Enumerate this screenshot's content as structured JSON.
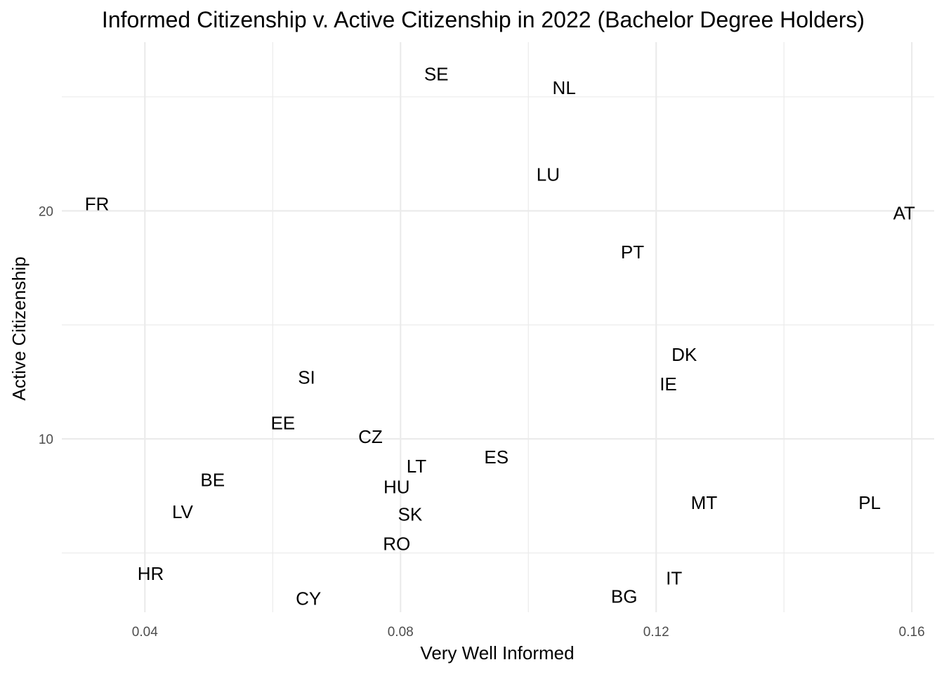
{
  "chart_data": {
    "type": "scatter",
    "title": "Informed Citizenship v. Active Citizenship in 2022 (Bachelor Degree Holders)",
    "xlabel": "Very Well Informed",
    "ylabel": "Active Citizenship",
    "xlim": [
      0.027,
      0.1635
    ],
    "ylim": [
      2.4,
      27.4
    ],
    "x_ticks": [
      0.04,
      0.08,
      0.12,
      0.16
    ],
    "x_tick_labels": [
      "0.04",
      "0.08",
      "0.12",
      "0.16"
    ],
    "y_ticks": [
      10,
      20
    ],
    "y_tick_labels": [
      "10",
      "20"
    ],
    "x_minor": [
      0.06,
      0.1,
      0.14
    ],
    "y_minor": [
      5,
      15,
      25
    ],
    "grid": true,
    "legend": "none",
    "points": [
      {
        "label": "SE",
        "x": 0.0856,
        "y": 26.0
      },
      {
        "label": "NL",
        "x": 0.1056,
        "y": 25.4
      },
      {
        "label": "LU",
        "x": 0.1031,
        "y": 21.6
      },
      {
        "label": "FR",
        "x": 0.0325,
        "y": 20.3
      },
      {
        "label": "AT",
        "x": 0.1588,
        "y": 19.9
      },
      {
        "label": "PT",
        "x": 0.1163,
        "y": 18.2
      },
      {
        "label": "DK",
        "x": 0.1244,
        "y": 13.7
      },
      {
        "label": "IE",
        "x": 0.1219,
        "y": 12.4
      },
      {
        "label": "SI",
        "x": 0.0653,
        "y": 12.7
      },
      {
        "label": "EE",
        "x": 0.0616,
        "y": 10.7
      },
      {
        "label": "CZ",
        "x": 0.0753,
        "y": 10.1
      },
      {
        "label": "ES",
        "x": 0.095,
        "y": 9.2
      },
      {
        "label": "LT",
        "x": 0.0825,
        "y": 8.8
      },
      {
        "label": "HU",
        "x": 0.0794,
        "y": 7.9
      },
      {
        "label": "BE",
        "x": 0.0506,
        "y": 8.2
      },
      {
        "label": "MT",
        "x": 0.1275,
        "y": 7.2
      },
      {
        "label": "PL",
        "x": 0.1534,
        "y": 7.2
      },
      {
        "label": "LV",
        "x": 0.0459,
        "y": 6.8
      },
      {
        "label": "SK",
        "x": 0.0815,
        "y": 6.7
      },
      {
        "label": "RO",
        "x": 0.0794,
        "y": 5.4
      },
      {
        "label": "HR",
        "x": 0.0409,
        "y": 4.1
      },
      {
        "label": "IT",
        "x": 0.1228,
        "y": 3.9
      },
      {
        "label": "BG",
        "x": 0.115,
        "y": 3.1
      },
      {
        "label": "CY",
        "x": 0.0656,
        "y": 3.0
      }
    ]
  }
}
